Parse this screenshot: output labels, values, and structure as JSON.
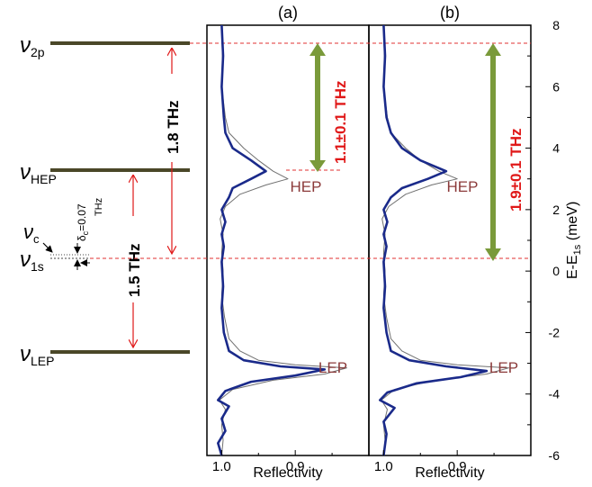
{
  "colors": {
    "level_line": "#4a4728",
    "dashed": "#e03030",
    "red_arrow": "#e01818",
    "green_arrow": "#7a9a3a",
    "thick_curve": "#1a2a8a",
    "thin_curve": "#707070",
    "peak_label": "#8b3a3a",
    "red_text": "#e01818",
    "axis": "#000000"
  },
  "levels": [
    {
      "sym": "ν",
      "sub": "2p",
      "energy_meV": 7.4
    },
    {
      "sym": "ν",
      "sub": "HEP",
      "energy_meV": 3.0
    },
    {
      "sym": "ν",
      "sub": "1s",
      "energy_meV": 0.0
    },
    {
      "sym": "ν",
      "sub": "LEP",
      "energy_meV": -3.2
    }
  ],
  "annotations": {
    "vc_sym": "ν",
    "vc_sub": "c",
    "delta_text": "δ",
    "delta_sub": "c",
    "delta_value": "=0.07",
    "delta_unit": "THz",
    "big_arrow_label": "1.8 THz",
    "small_arrow_label": "1.5 THz",
    "panel_a_arrow_label": "1.1±0.1 THz",
    "panel_b_arrow_label": "1.9±0.1 THz",
    "hep_label": "HEP",
    "lep_label": "LEP"
  },
  "chart_data": [
    {
      "type": "line",
      "panel_label": "(a)",
      "xlabel": "Reflectivity",
      "x_ticks": [
        "1.0",
        "0.9"
      ],
      "x_tick_values": [
        1.0,
        0.9
      ],
      "xlim": [
        1.02,
        0.8
      ],
      "ylim": [
        -6,
        8
      ],
      "series": [
        {
          "style": "thick",
          "points": [
            [
              1.0,
              8.0
            ],
            [
              0.998,
              7.0
            ],
            [
              1.0,
              6.0
            ],
            [
              0.997,
              5.0
            ],
            [
              0.995,
              4.5
            ],
            [
              0.985,
              4.0
            ],
            [
              0.96,
              3.6
            ],
            [
              0.94,
              3.25
            ],
            [
              0.96,
              3.0
            ],
            [
              0.985,
              2.7
            ],
            [
              0.99,
              2.4
            ],
            [
              1.0,
              2.0
            ],
            [
              0.995,
              1.6
            ],
            [
              1.0,
              1.2
            ],
            [
              0.997,
              0.8
            ],
            [
              1.0,
              0.3
            ],
            [
              0.998,
              -0.5
            ],
            [
              1.0,
              -1.2
            ],
            [
              0.997,
              -2.0
            ],
            [
              0.99,
              -2.6
            ],
            [
              0.97,
              -2.9
            ],
            [
              0.92,
              -3.1
            ],
            [
              0.86,
              -3.2
            ],
            [
              0.9,
              -3.4
            ],
            [
              0.96,
              -3.6
            ],
            [
              0.995,
              -3.9
            ],
            [
              1.005,
              -4.2
            ],
            [
              0.99,
              -4.4
            ],
            [
              1.0,
              -4.8
            ],
            [
              0.995,
              -5.2
            ],
            [
              1.005,
              -5.6
            ],
            [
              1.0,
              -6.0
            ]
          ]
        },
        {
          "style": "thin",
          "points": [
            [
              1.0,
              8.0
            ],
            [
              0.999,
              7.0
            ],
            [
              1.0,
              6.0
            ],
            [
              0.995,
              5.0
            ],
            [
              0.99,
              4.5
            ],
            [
              0.97,
              4.0
            ],
            [
              0.95,
              3.6
            ],
            [
              0.93,
              3.25
            ],
            [
              0.91,
              3.0
            ],
            [
              0.94,
              2.8
            ],
            [
              0.975,
              2.5
            ],
            [
              0.995,
              2.1
            ],
            [
              1.002,
              1.7
            ],
            [
              0.998,
              1.2
            ],
            [
              1.0,
              0.6
            ],
            [
              0.998,
              0.0
            ],
            [
              1.0,
              -0.8
            ],
            [
              0.996,
              -1.5
            ],
            [
              0.99,
              -2.2
            ],
            [
              0.975,
              -2.6
            ],
            [
              0.95,
              -2.9
            ],
            [
              0.9,
              -3.05
            ],
            [
              0.83,
              -3.15
            ],
            [
              0.86,
              -3.35
            ],
            [
              0.93,
              -3.55
            ],
            [
              0.985,
              -3.85
            ],
            [
              1.003,
              -4.2
            ],
            [
              0.995,
              -4.5
            ],
            [
              1.0,
              -5.0
            ],
            [
              0.998,
              -5.5
            ],
            [
              1.0,
              -6.0
            ]
          ]
        }
      ]
    },
    {
      "type": "line",
      "panel_label": "(b)",
      "xlabel": "Reflectivity",
      "x_ticks": [
        "1.0",
        "0.9"
      ],
      "x_tick_values": [
        1.0,
        0.9
      ],
      "xlim": [
        1.02,
        0.8
      ],
      "ylim": [
        -6,
        8
      ],
      "y_ticks": [
        8,
        6,
        4,
        2,
        0,
        -2,
        -4,
        -6
      ],
      "ylabel": "E-E",
      "ylabel_sub": "1s",
      "ylabel_unit": "(meV)",
      "series": [
        {
          "style": "thick",
          "points": [
            [
              1.0,
              8.0
            ],
            [
              0.998,
              7.0
            ],
            [
              1.0,
              6.0
            ],
            [
              0.996,
              5.0
            ],
            [
              0.99,
              4.5
            ],
            [
              0.975,
              4.0
            ],
            [
              0.95,
              3.6
            ],
            [
              0.915,
              3.25
            ],
            [
              0.94,
              3.0
            ],
            [
              0.975,
              2.7
            ],
            [
              0.99,
              2.4
            ],
            [
              1.0,
              2.0
            ],
            [
              0.995,
              1.6
            ],
            [
              1.0,
              1.2
            ],
            [
              0.996,
              0.8
            ],
            [
              1.0,
              0.3
            ],
            [
              0.998,
              -0.5
            ],
            [
              1.0,
              -1.2
            ],
            [
              0.996,
              -2.0
            ],
            [
              0.99,
              -2.6
            ],
            [
              0.965,
              -2.9
            ],
            [
              0.915,
              -3.1
            ],
            [
              0.86,
              -3.25
            ],
            [
              0.895,
              -3.45
            ],
            [
              0.955,
              -3.65
            ],
            [
              0.995,
              -3.95
            ],
            [
              1.005,
              -4.2
            ],
            [
              0.985,
              -4.45
            ],
            [
              1.0,
              -4.9
            ],
            [
              0.996,
              -5.3
            ],
            [
              1.0,
              -6.0
            ]
          ]
        },
        {
          "style": "thin",
          "points": [
            [
              1.0,
              8.0
            ],
            [
              0.999,
              7.0
            ],
            [
              1.0,
              6.0
            ],
            [
              0.995,
              5.0
            ],
            [
              0.99,
              4.5
            ],
            [
              0.97,
              4.0
            ],
            [
              0.95,
              3.6
            ],
            [
              0.925,
              3.25
            ],
            [
              0.9,
              3.0
            ],
            [
              0.935,
              2.8
            ],
            [
              0.97,
              2.5
            ],
            [
              0.993,
              2.1
            ],
            [
              1.002,
              1.7
            ],
            [
              0.998,
              1.2
            ],
            [
              1.0,
              0.6
            ],
            [
              0.998,
              0.0
            ],
            [
              1.0,
              -0.8
            ],
            [
              0.996,
              -1.5
            ],
            [
              0.99,
              -2.2
            ],
            [
              0.975,
              -2.6
            ],
            [
              0.95,
              -2.9
            ],
            [
              0.9,
              -3.05
            ],
            [
              0.83,
              -3.15
            ],
            [
              0.86,
              -3.35
            ],
            [
              0.93,
              -3.55
            ],
            [
              0.985,
              -3.85
            ],
            [
              1.003,
              -4.2
            ],
            [
              0.995,
              -4.5
            ],
            [
              1.0,
              -5.0
            ],
            [
              0.998,
              -5.5
            ],
            [
              1.0,
              -6.0
            ]
          ]
        }
      ]
    }
  ]
}
